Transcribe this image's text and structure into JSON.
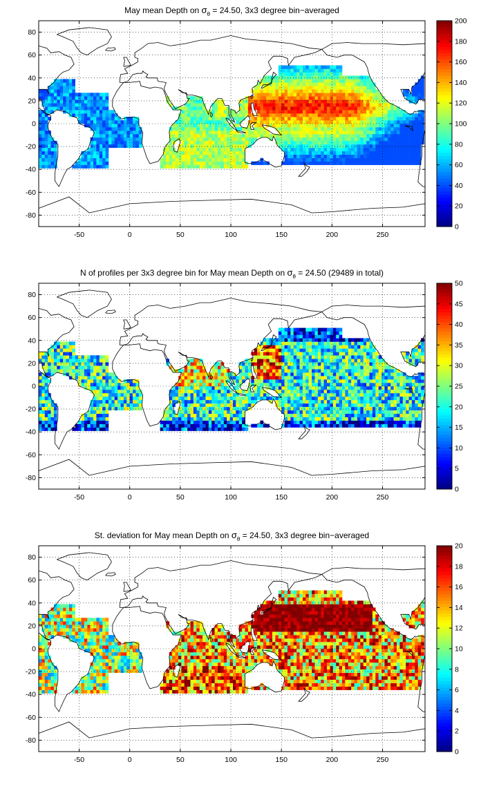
{
  "chart_data": [
    {
      "type": "heatmap",
      "title": {
        "pre": "May mean Depth on ",
        "sigma": "σ",
        "sub": "θ",
        "post": " = 24.50, 3x3 degree bin−averaged"
      },
      "xlabel": "",
      "ylabel": "",
      "xlim": [
        -90,
        292
      ],
      "ylim": [
        -90,
        90
      ],
      "xticks": [
        -50,
        0,
        50,
        100,
        150,
        200,
        250
      ],
      "yticks": [
        -80,
        -60,
        -40,
        -20,
        0,
        20,
        40,
        60,
        80
      ],
      "colorbar": {
        "ticks": [
          0,
          20,
          40,
          60,
          80,
          100,
          120,
          140,
          160,
          180,
          200
        ],
        "range": [
          0,
          200
        ],
        "colormap": "jet"
      },
      "grid": true,
      "field": "depth"
    },
    {
      "type": "heatmap",
      "title": {
        "pre": "N of profiles per 3x3 degree bin for May mean Depth on ",
        "sigma": "σ",
        "sub": "θ",
        "post": " = 24.50 (29489 in total)"
      },
      "xlabel": "",
      "ylabel": "",
      "xlim": [
        -90,
        292
      ],
      "ylim": [
        -90,
        90
      ],
      "xticks": [
        -50,
        0,
        50,
        100,
        150,
        200,
        250
      ],
      "yticks": [
        -80,
        -60,
        -40,
        -20,
        0,
        20,
        40,
        60,
        80
      ],
      "colorbar": {
        "ticks": [
          0,
          5,
          10,
          15,
          20,
          25,
          30,
          35,
          40,
          45,
          50
        ],
        "range": [
          0,
          50
        ],
        "colormap": "jet"
      },
      "grid": true,
      "field": "count"
    },
    {
      "type": "heatmap",
      "title": {
        "pre": "St. deviation for May mean Depth on ",
        "sigma": "σ",
        "sub": "θ",
        "post": " = 24.50, 3x3 degree bin−averaged"
      },
      "xlabel": "",
      "ylabel": "",
      "xlim": [
        -90,
        292
      ],
      "ylim": [
        -90,
        90
      ],
      "xticks": [
        -50,
        0,
        50,
        100,
        150,
        200,
        250
      ],
      "yticks": [
        -80,
        -60,
        -40,
        -20,
        0,
        20,
        40,
        60,
        80
      ],
      "colorbar": {
        "ticks": [
          0,
          2,
          4,
          6,
          8,
          10,
          12,
          14,
          16,
          18,
          20
        ],
        "range": [
          0,
          20
        ],
        "colormap": "jet"
      },
      "grid": true,
      "field": "std"
    }
  ]
}
